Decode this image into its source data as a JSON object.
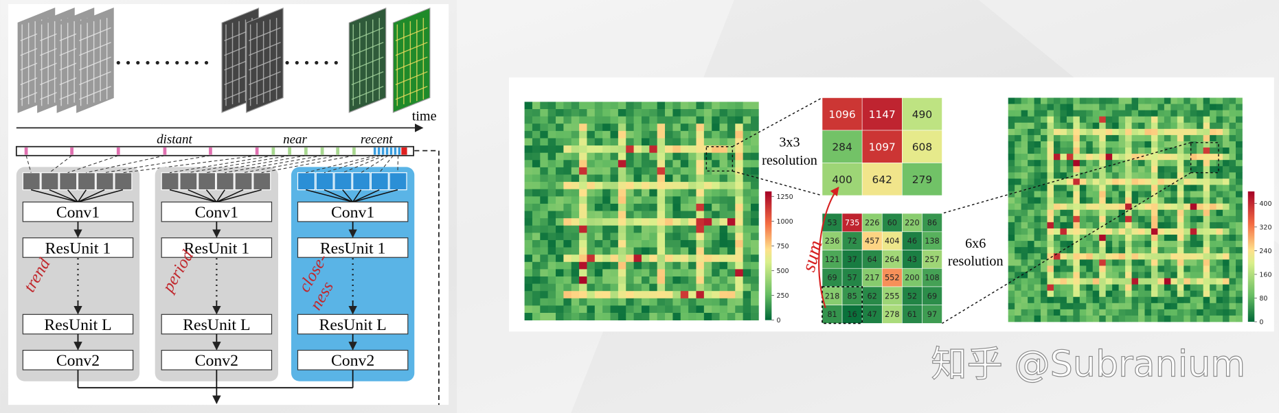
{
  "left": {
    "time": "time",
    "distant": "distant",
    "near": "near",
    "recent": "recent",
    "branches": [
      {
        "label": [
          "trend"
        ],
        "layers": [
          "Conv1",
          "ResUnit 1",
          "ResUnit L",
          "Conv2"
        ]
      },
      {
        "label": [
          "period"
        ],
        "layers": [
          "Conv1",
          "ResUnit 1",
          "ResUnit L",
          "Conv2"
        ]
      },
      {
        "label": [
          "close-",
          "ness"
        ],
        "layers": [
          "Conv1",
          "ResUnit 1",
          "ResUnit L",
          "Conv2"
        ]
      }
    ]
  },
  "right": {
    "res3": [
      "3x3",
      "resolution"
    ],
    "res6": [
      "6x6",
      "resolution"
    ],
    "sum": "sum",
    "grid3": [
      [
        1096,
        1147,
        490
      ],
      [
        284,
        1097,
        608
      ],
      [
        400,
        642,
        279
      ]
    ],
    "grid6": [
      [
        53,
        735,
        226,
        60,
        220,
        86
      ],
      [
        236,
        72,
        457,
        404,
        46,
        138
      ],
      [
        121,
        37,
        64,
        264,
        43,
        257
      ],
      [
        69,
        57,
        217,
        552,
        200,
        108
      ],
      [
        218,
        85,
        62,
        255,
        52,
        69
      ],
      [
        81,
        16,
        47,
        278,
        61,
        97
      ]
    ],
    "colorbar1": [
      1250,
      1000,
      750,
      500,
      250,
      0
    ],
    "colorbar2": [
      400,
      320,
      240,
      160,
      80,
      0
    ]
  },
  "watermark": "知乎 @Subranium"
}
